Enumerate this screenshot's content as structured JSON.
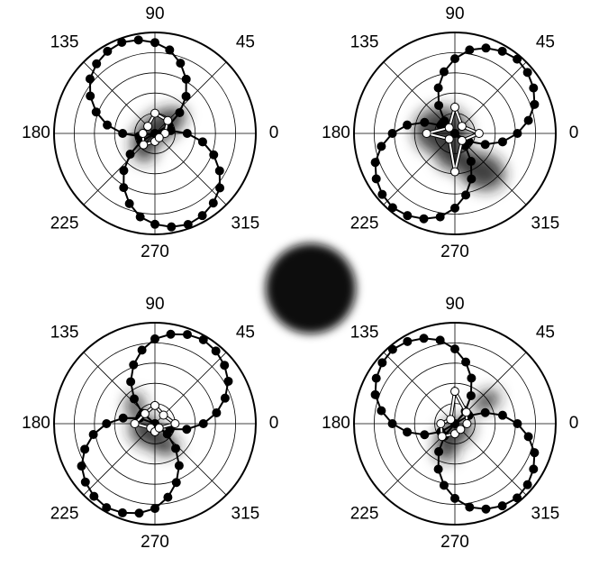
{
  "chart_data": [
    {
      "type": "polar",
      "rlim": [
        0,
        5
      ],
      "rgrid": [
        1,
        2,
        3,
        4,
        5
      ],
      "thetaticks": [
        0,
        45,
        90,
        135,
        180,
        225,
        270,
        315
      ],
      "series": [
        {
          "color": "#000000",
          "marker_fill": "#000000",
          "theta": [
            0,
            10,
            20,
            30,
            40,
            50,
            60,
            70,
            80,
            90,
            100,
            110,
            120,
            130,
            140,
            150,
            160,
            170,
            180,
            190,
            200,
            210,
            220,
            230,
            240,
            250,
            260,
            270,
            280,
            290,
            300,
            310,
            320,
            330,
            340,
            350
          ],
          "values": [
            1.6,
            0.8,
            0,
            0.8,
            1.6,
            2.4,
            3.1,
            3.7,
            4.2,
            4.5,
            4.7,
            4.8,
            4.7,
            4.5,
            4.2,
            3.7,
            3.1,
            2.4,
            1.6,
            0.8,
            0,
            0.8,
            1.6,
            2.4,
            3.1,
            3.7,
            4.2,
            4.5,
            4.7,
            4.8,
            4.7,
            4.5,
            4.2,
            3.7,
            3.1,
            2.4
          ]
        },
        {
          "color": "#ffffff",
          "marker_fill": "#ffffff",
          "theta": [
            0,
            45,
            90,
            135,
            180,
            225,
            270,
            315
          ],
          "values": [
            0.5,
            0.9,
            1.0,
            0.5,
            0.6,
            0.8,
            0.4,
            0.3
          ]
        }
      ]
    },
    {
      "type": "polar",
      "rlim": [
        0,
        5
      ],
      "rgrid": [
        1,
        2,
        3,
        4,
        5
      ],
      "thetaticks": [
        0,
        45,
        90,
        135,
        180,
        225,
        270,
        315
      ],
      "series": [
        {
          "color": "#000000",
          "marker_fill": "#000000",
          "theta": [
            0,
            10,
            20,
            30,
            40,
            50,
            60,
            70,
            80,
            90,
            100,
            110,
            120,
            130,
            140,
            150,
            160,
            170,
            180,
            190,
            200,
            210,
            220,
            230,
            240,
            250,
            260,
            270,
            280,
            290,
            300,
            310,
            320,
            330,
            340,
            350
          ],
          "values": [
            3.1,
            3.7,
            4.2,
            4.5,
            4.7,
            4.8,
            4.7,
            4.5,
            4.2,
            3.7,
            3.1,
            2.4,
            1.6,
            0.8,
            0,
            0.8,
            1.6,
            2.4,
            3.1,
            3.7,
            4.2,
            4.5,
            4.7,
            4.8,
            4.7,
            4.5,
            4.2,
            3.7,
            3.1,
            2.4,
            1.6,
            0.8,
            0,
            0.8,
            1.6,
            2.4
          ]
        },
        {
          "color": "#ffffff",
          "marker_fill": "#ffffff",
          "theta": [
            0,
            45,
            90,
            135,
            180,
            225,
            270,
            315
          ],
          "values": [
            1.2,
            0.5,
            1.3,
            0.4,
            1.4,
            0.4,
            1.9,
            0.5
          ]
        }
      ]
    },
    {
      "type": "polar",
      "rlim": [
        0,
        5
      ],
      "rgrid": [
        1,
        2,
        3,
        4,
        5
      ],
      "thetaticks": [
        0,
        45,
        90,
        135,
        180,
        225,
        270,
        315
      ],
      "series": [
        {
          "color": "#000000",
          "marker_fill": "#000000",
          "theta": [
            0,
            10,
            20,
            30,
            40,
            50,
            60,
            70,
            80,
            90,
            100,
            110,
            120,
            130,
            140,
            150,
            160,
            170,
            180,
            190,
            200,
            210,
            220,
            230,
            240,
            250,
            260,
            270,
            280,
            290,
            300,
            310,
            320,
            330,
            340,
            350
          ],
          "values": [
            2.4,
            3.1,
            3.7,
            4.2,
            4.5,
            4.7,
            4.8,
            4.7,
            4.5,
            4.2,
            3.7,
            3.1,
            2.4,
            1.6,
            0.8,
            0,
            0.8,
            1.6,
            2.4,
            3.1,
            3.7,
            4.2,
            4.5,
            4.7,
            4.8,
            4.7,
            4.5,
            4.2,
            3.7,
            3.1,
            2.4,
            1.6,
            0.8,
            0,
            0.8,
            1.6
          ]
        },
        {
          "color": "#ffffff",
          "marker_fill": "#ffffff",
          "theta": [
            0,
            45,
            90,
            135,
            180,
            225,
            270,
            315
          ],
          "values": [
            1.0,
            0.6,
            0.9,
            0.7,
            1.0,
            0.3,
            0.4,
            0.3
          ]
        }
      ]
    },
    {
      "type": "polar",
      "rlim": [
        0,
        5
      ],
      "rgrid": [
        1,
        2,
        3,
        4,
        5
      ],
      "thetaticks": [
        0,
        45,
        90,
        135,
        180,
        225,
        270,
        315
      ],
      "series": [
        {
          "color": "#000000",
          "marker_fill": "#000000",
          "theta": [
            0,
            10,
            20,
            30,
            40,
            50,
            60,
            70,
            80,
            90,
            100,
            110,
            120,
            130,
            140,
            150,
            160,
            170,
            180,
            190,
            200,
            210,
            220,
            230,
            240,
            250,
            260,
            270,
            280,
            290,
            300,
            310,
            320,
            330,
            340,
            350
          ],
          "values": [
            3.1,
            2.4,
            1.6,
            0.8,
            0,
            0.8,
            1.6,
            2.4,
            3.1,
            3.7,
            4.2,
            4.5,
            4.7,
            4.8,
            4.7,
            4.5,
            4.2,
            3.7,
            3.1,
            2.4,
            1.6,
            0.8,
            0,
            0.8,
            1.6,
            2.4,
            3.1,
            3.7,
            4.2,
            4.5,
            4.7,
            4.8,
            4.7,
            4.5,
            4.2,
            3.7
          ]
        },
        {
          "color": "#ffffff",
          "marker_fill": "#ffffff",
          "theta": [
            0,
            45,
            90,
            135,
            180,
            225,
            270,
            315
          ],
          "values": [
            0.6,
            0.8,
            1.6,
            0.3,
            0.7,
            0.9,
            0.5,
            0.4
          ]
        }
      ]
    }
  ]
}
